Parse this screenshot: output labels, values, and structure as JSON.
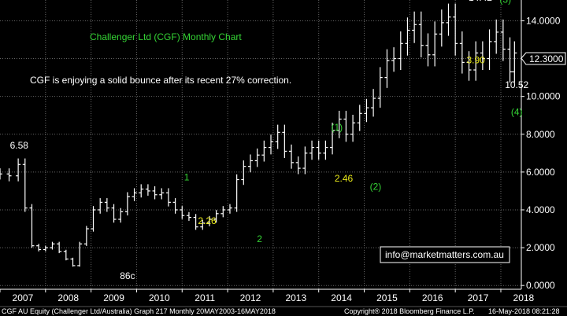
{
  "chart_data": {
    "type": "line",
    "title": "Challenger Ltd (CGF) Monthly Chart",
    "subtitle": "CGF is enjoying a solid bounce after its recent 27% correction.",
    "x_unit": "year",
    "xlim": [
      2007.0,
      2018.45
    ],
    "ylim": [
      -0.2,
      15.1
    ],
    "y_tick_values": [
      0,
      2,
      4,
      6,
      8,
      10,
      12,
      14
    ],
    "y_tick_labels": [
      "0.0000",
      "2.0000",
      "4.0000",
      "6.0000",
      "8.0000",
      "10.0000",
      "12.0000",
      "14.0000"
    ],
    "x_tick_labels": [
      "2007",
      "2008",
      "2009",
      "2010",
      "2011",
      "2012",
      "2013",
      "2014",
      "2015",
      "2016",
      "2017",
      "2018"
    ],
    "last_price_label": "12.3000",
    "last_price": 12.3,
    "series": [
      {
        "style": "ohlc_bar",
        "x": [
          2007.0,
          2007.2,
          2007.4,
          2007.55,
          2007.7,
          2007.85,
          2008.0,
          2008.15,
          2008.3,
          2008.45,
          2008.6,
          2008.75,
          2008.9,
          2009.05,
          2009.2,
          2009.35,
          2009.5,
          2009.65,
          2009.8,
          2009.95,
          2010.1,
          2010.25,
          2010.4,
          2010.55,
          2010.7,
          2010.85,
          2011.0,
          2011.15,
          2011.3,
          2011.45,
          2011.6,
          2011.75,
          2011.9,
          2012.05,
          2012.2,
          2012.35,
          2012.5,
          2012.65,
          2012.8,
          2012.95,
          2013.1,
          2013.25,
          2013.4,
          2013.55,
          2013.7,
          2013.85,
          2014.0,
          2014.15,
          2014.3,
          2014.45,
          2014.6,
          2014.75,
          2014.9,
          2015.05,
          2015.2,
          2015.35,
          2015.5,
          2015.65,
          2015.8,
          2015.95,
          2016.1,
          2016.25,
          2016.4,
          2016.55,
          2016.7,
          2016.85,
          2017.0,
          2017.15,
          2017.3,
          2017.45,
          2017.6,
          2017.75,
          2017.9,
          2018.05,
          2018.2,
          2018.3
        ],
        "values": [
          5.9,
          5.8,
          6.4,
          4.1,
          2.1,
          1.9,
          2.0,
          2.2,
          1.8,
          1.4,
          1.05,
          2.2,
          3.0,
          4.0,
          4.4,
          4.1,
          3.5,
          3.9,
          4.7,
          4.9,
          5.1,
          5.0,
          4.8,
          4.9,
          4.4,
          4.0,
          3.7,
          3.6,
          3.1,
          3.3,
          3.5,
          3.8,
          4.0,
          4.1,
          5.6,
          6.3,
          6.6,
          6.9,
          7.3,
          7.6,
          8.1,
          7.1,
          6.5,
          6.2,
          7.0,
          7.3,
          7.0,
          7.3,
          8.2,
          8.8,
          8.0,
          8.6,
          9.1,
          9.4,
          9.9,
          11.0,
          11.9,
          12.0,
          12.8,
          13.5,
          13.8,
          12.7,
          12.2,
          13.3,
          13.9,
          14.2,
          12.8,
          11.8,
          11.4,
          12.3,
          12.0,
          12.9,
          13.4,
          12.5,
          11.3,
          12.3
        ]
      }
    ],
    "annotations": [
      {
        "text": "6.58",
        "x": 2007.42,
        "y": 7.25,
        "color": "white"
      },
      {
        "text": "86c",
        "x": 2009.8,
        "y": 0.35,
        "color": "white"
      },
      {
        "text": "1",
        "x": 2011.1,
        "y": 5.55,
        "color": "green"
      },
      {
        "text": "2.26",
        "x": 2011.55,
        "y": 3.25,
        "color": "yellow"
      },
      {
        "text": "2",
        "x": 2012.7,
        "y": 2.3,
        "color": "green"
      },
      {
        "text": "(1)",
        "x": 2014.4,
        "y": 8.2,
        "color": "green"
      },
      {
        "text": "2.46",
        "x": 2014.55,
        "y": 5.5,
        "color": "yellow"
      },
      {
        "text": "(2)",
        "x": 2015.25,
        "y": 5.05,
        "color": "green"
      },
      {
        "text": "14.42",
        "x": 2017.55,
        "y": 15.05,
        "color": "white"
      },
      {
        "text": "(3)",
        "x": 2018.1,
        "y": 14.95,
        "color": "green"
      },
      {
        "text": "3.90",
        "x": 2017.45,
        "y": 11.75,
        "color": "yellow"
      },
      {
        "text": "10.52",
        "x": 2018.35,
        "y": 10.45,
        "color": "white"
      },
      {
        "text": "(4)",
        "x": 2018.35,
        "y": 9.0,
        "color": "green"
      }
    ],
    "grid": true
  },
  "footer": {
    "left": "CGF AU Equity (Challenger Ltd/Australia) Graph 217  Monthly 20MAY2003-16MAY2018",
    "center": "Copyright® 2018 Bloomberg Finance L.P.",
    "right": "16-May-2018 08:21:28"
  },
  "watermark": "info@marketmatters.com.au"
}
